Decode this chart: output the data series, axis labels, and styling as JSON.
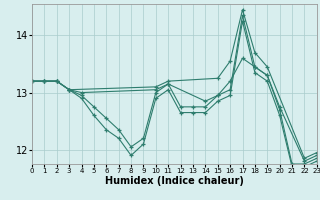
{
  "xlabel": "Humidex (Indice chaleur)",
  "bg_color": "#d8eeee",
  "line_color": "#2e7d6e",
  "grid_color": "#aacccc",
  "xlim": [
    0,
    23
  ],
  "ylim": [
    11.75,
    14.55
  ],
  "yticks": [
    12,
    13,
    14
  ],
  "xtick_labels": [
    "0",
    "1",
    "2",
    "3",
    "4",
    "5",
    "6",
    "7",
    "8",
    "9",
    "10",
    "11",
    "12",
    "13",
    "14",
    "15",
    "16",
    "17",
    "18",
    "19",
    "20",
    "21",
    "2223"
  ],
  "series": [
    {
      "x": [
        0,
        1,
        2,
        3,
        10,
        11,
        15,
        16,
        17,
        18,
        19,
        22,
        23
      ],
      "y": [
        13.2,
        13.2,
        13.2,
        13.05,
        13.1,
        13.2,
        13.25,
        13.55,
        14.45,
        13.7,
        13.45,
        11.85,
        11.95
      ]
    },
    {
      "x": [
        0,
        1,
        2,
        3,
        4,
        10,
        11,
        14,
        15,
        16,
        17,
        18,
        19,
        20,
        22,
        23
      ],
      "y": [
        13.2,
        13.2,
        13.2,
        13.05,
        13.0,
        13.05,
        13.15,
        12.85,
        12.95,
        13.2,
        13.6,
        13.45,
        13.3,
        12.75,
        11.8,
        11.9
      ]
    },
    {
      "x": [
        0,
        1,
        2,
        3,
        4,
        5,
        6,
        7,
        8,
        9,
        10,
        11,
        12,
        13,
        14,
        15,
        16,
        17,
        18,
        19,
        20,
        21,
        22,
        23
      ],
      "y": [
        13.2,
        13.2,
        13.2,
        13.05,
        12.95,
        12.75,
        12.55,
        12.35,
        12.05,
        12.2,
        13.0,
        13.15,
        12.75,
        12.75,
        12.75,
        12.95,
        13.05,
        14.35,
        13.45,
        13.3,
        12.7,
        11.75,
        11.75,
        11.85
      ]
    },
    {
      "x": [
        0,
        1,
        2,
        3,
        4,
        5,
        6,
        7,
        8,
        9,
        10,
        11,
        12,
        13,
        14,
        15,
        16,
        17,
        18,
        19,
        20,
        21,
        22,
        23
      ],
      "y": [
        13.2,
        13.2,
        13.2,
        13.05,
        12.9,
        12.6,
        12.35,
        12.2,
        11.9,
        12.1,
        12.9,
        13.05,
        12.65,
        12.65,
        12.65,
        12.85,
        12.95,
        14.25,
        13.35,
        13.2,
        12.6,
        11.7,
        11.7,
        11.8
      ]
    }
  ]
}
